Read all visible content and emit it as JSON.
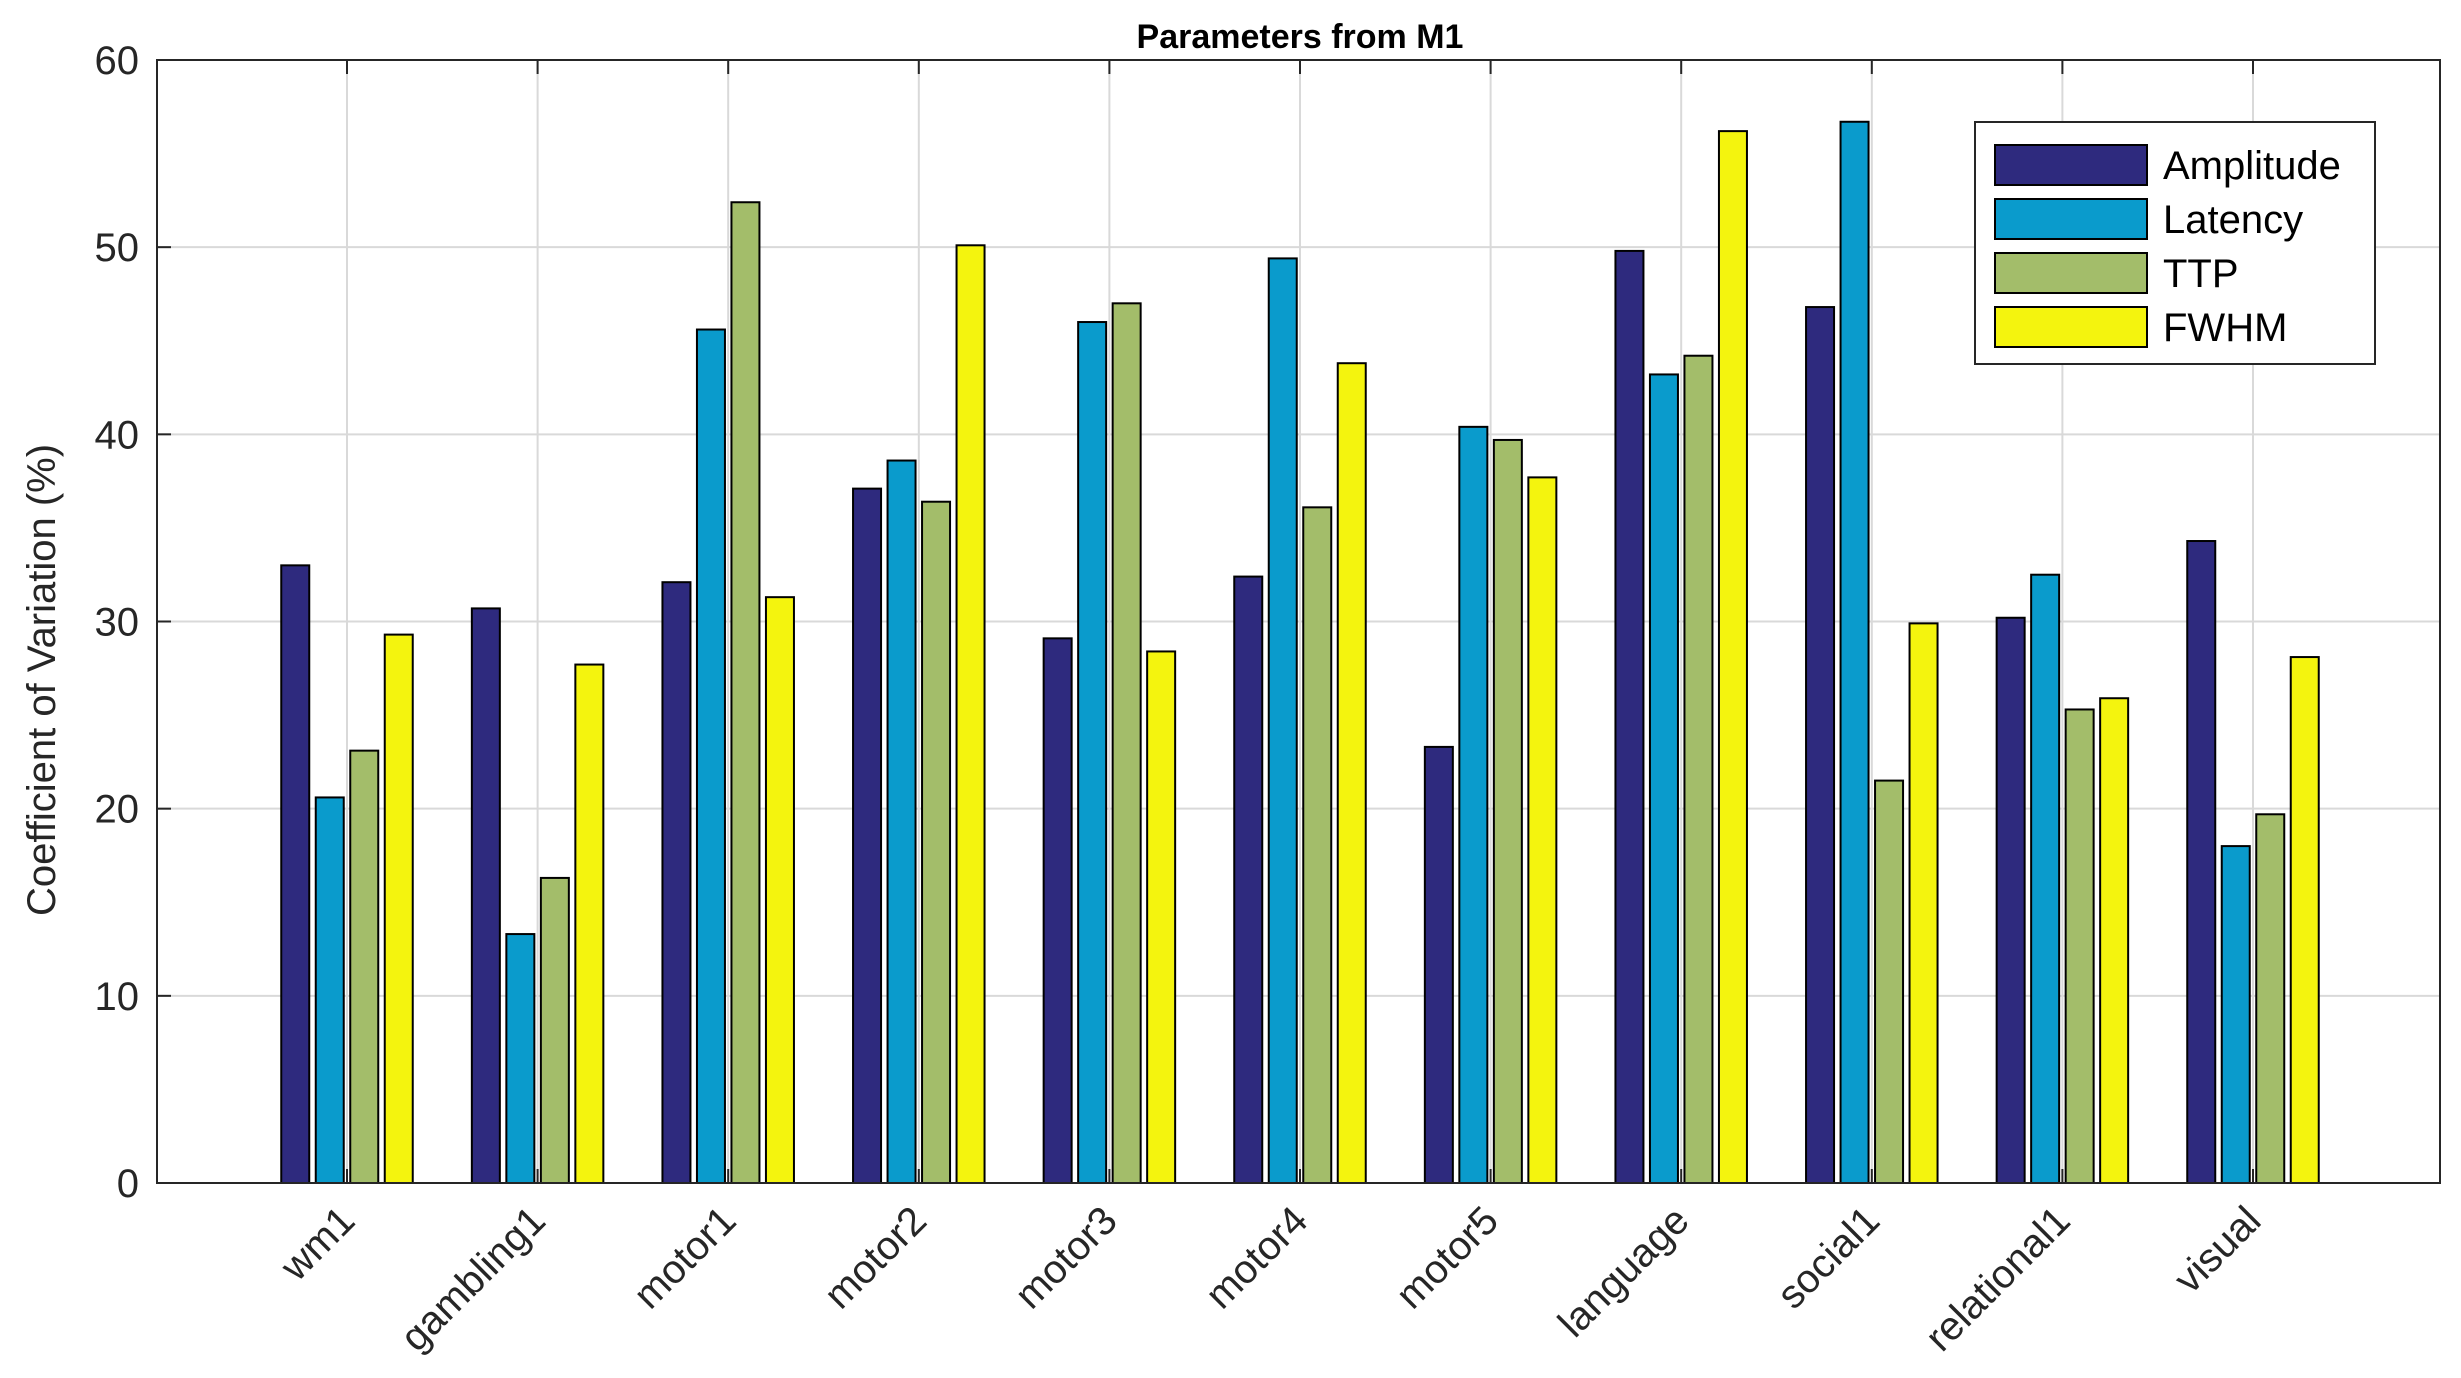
{
  "chart_data": {
    "type": "bar",
    "title": "Parameters from M1",
    "xlabel": "",
    "ylabel": "Coefficient of Variation (%)",
    "ylim": [
      0,
      60
    ],
    "yticks": [
      0,
      10,
      20,
      30,
      40,
      50,
      60
    ],
    "grid": true,
    "legend_position": "top-right",
    "categories": [
      "wm1",
      "gambling1",
      "motor1",
      "motor2",
      "motor3",
      "motor4",
      "motor5",
      "language",
      "social1",
      "relational1",
      "visual"
    ],
    "series": [
      {
        "name": "Amplitude",
        "color": "#2e2a7e",
        "values": [
          33.0,
          30.7,
          32.1,
          37.1,
          29.1,
          32.4,
          23.3,
          49.8,
          46.8,
          30.2,
          34.3
        ]
      },
      {
        "name": "Latency",
        "color": "#0a9bcc",
        "values": [
          20.6,
          13.3,
          45.6,
          38.6,
          46.0,
          49.4,
          40.4,
          43.2,
          56.7,
          32.5,
          18.0
        ]
      },
      {
        "name": "TTP",
        "color": "#a3bd6a",
        "values": [
          23.1,
          16.3,
          52.4,
          36.4,
          47.0,
          36.1,
          39.7,
          44.2,
          21.5,
          25.3,
          19.7
        ]
      },
      {
        "name": "FWHM",
        "color": "#f4f40e",
        "values": [
          29.3,
          27.7,
          31.3,
          50.1,
          28.4,
          43.8,
          37.7,
          56.2,
          29.9,
          25.9,
          28.1
        ]
      }
    ]
  }
}
